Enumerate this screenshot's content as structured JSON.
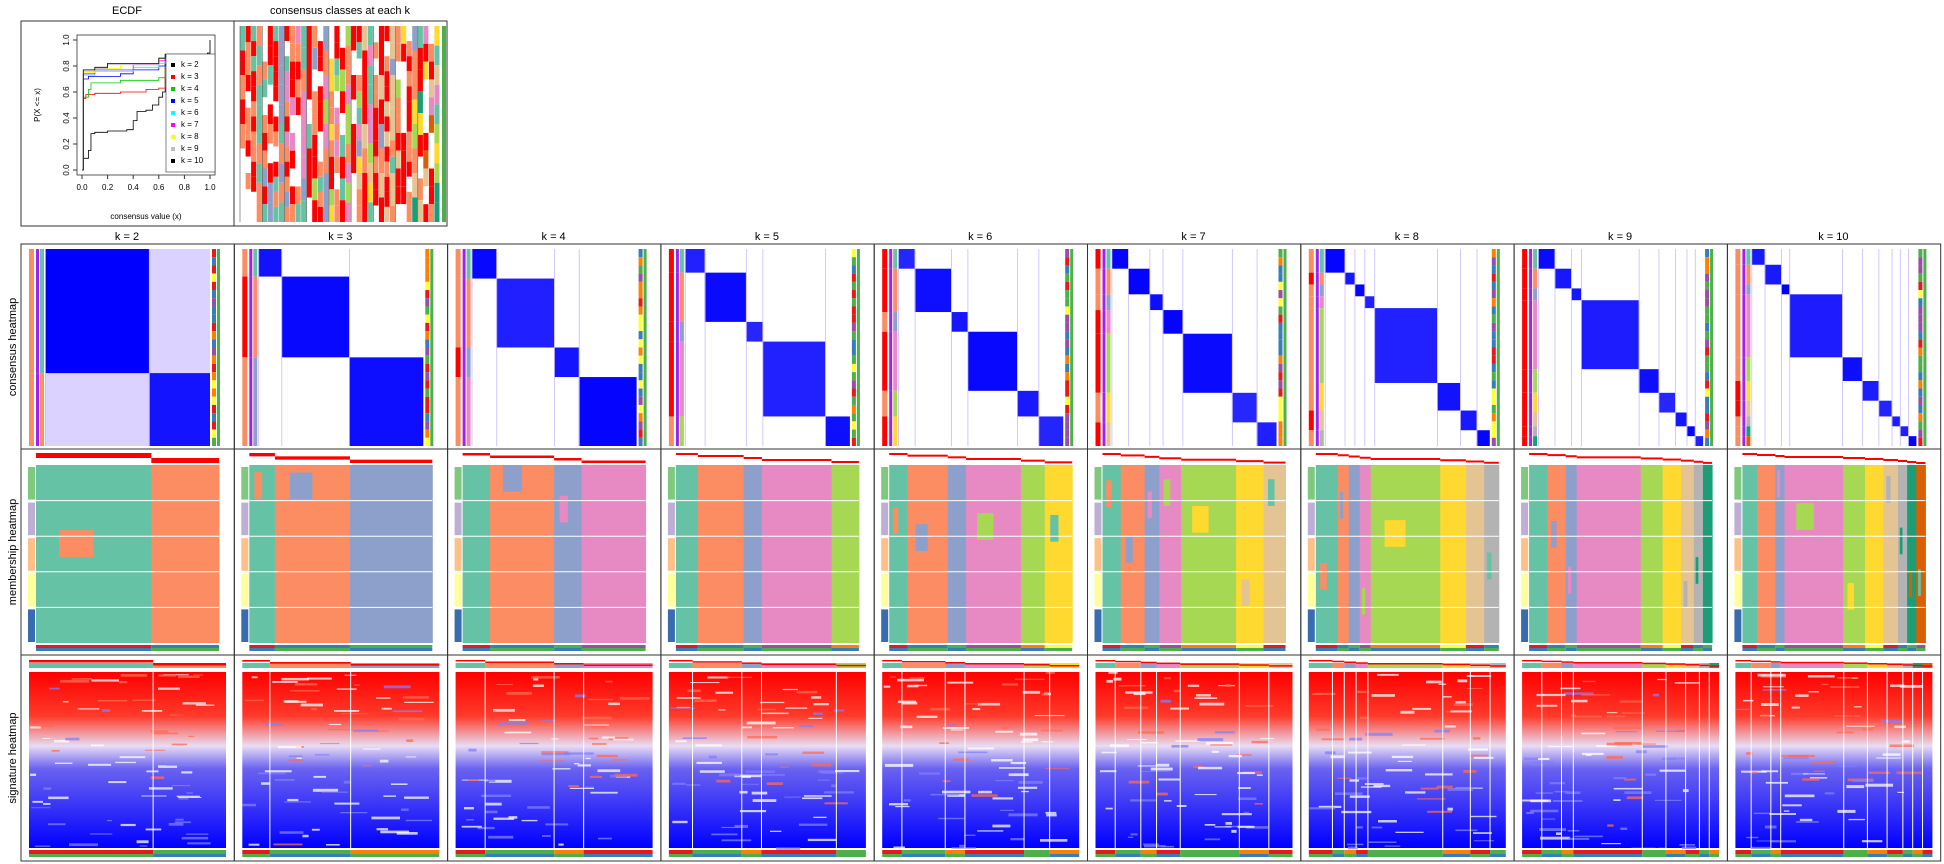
{
  "ecdf_title": "ECDF",
  "classes_title": "consensus classes at each k",
  "row_labels": [
    "consensus heatmap",
    "membership heatmap",
    "signature heatmap"
  ],
  "k_labels": [
    "k = 2",
    "k = 3",
    "k = 4",
    "k = 5",
    "k = 6",
    "k = 7",
    "k = 8",
    "k = 9",
    "k = 10"
  ],
  "palette": {
    "classes": [
      "#66C2A5",
      "#FC8D62",
      "#8DA0CB",
      "#E78AC3",
      "#A6D854",
      "#FFD92F",
      "#E5C494",
      "#B3B3B3",
      "#1B9E77",
      "#D95F02"
    ],
    "consensus_high": "#0000FF",
    "signature_high": "#FF0000",
    "signature_low": "#0000FF",
    "silhouette": "#FF0000",
    "annotation": [
      "#E41A1C",
      "#377EB8",
      "#4DAF4A",
      "#984EA3",
      "#FF7F00",
      "#FFFF33"
    ]
  },
  "chart_data": [
    {
      "type": "line",
      "title": "ECDF",
      "xlabel": "consensus value (x)",
      "ylabel": "P(X <= x)",
      "xlim": [
        0,
        1
      ],
      "ylim": [
        0,
        1
      ],
      "x_ticks": [
        "0.0",
        "0.2",
        "0.4",
        "0.6",
        "0.8",
        "1.0"
      ],
      "y_ticks": [
        "0.0",
        "0.2",
        "0.4",
        "0.6",
        "0.8",
        "1.0"
      ],
      "legend_position": "right",
      "series": [
        {
          "name": "k = 2",
          "color": "#000000",
          "points": [
            [
              0,
              0
            ],
            [
              0.01,
              0.09
            ],
            [
              0.05,
              0.15
            ],
            [
              0.07,
              0.28
            ],
            [
              0.1,
              0.29
            ],
            [
              0.2,
              0.3
            ],
            [
              0.35,
              0.31
            ],
            [
              0.4,
              0.38
            ],
            [
              0.43,
              0.45
            ],
            [
              0.5,
              0.46
            ],
            [
              0.55,
              0.5
            ],
            [
              0.6,
              0.56
            ],
            [
              0.63,
              0.6
            ],
            [
              0.65,
              0.85
            ],
            [
              0.9,
              0.88
            ],
            [
              0.98,
              0.9
            ],
            [
              1,
              1
            ]
          ]
        },
        {
          "name": "k = 3",
          "color": "#FF0000",
          "points": [
            [
              0,
              0
            ],
            [
              0.01,
              0.55
            ],
            [
              0.03,
              0.58
            ],
            [
              0.1,
              0.59
            ],
            [
              0.3,
              0.6
            ],
            [
              0.5,
              0.62
            ],
            [
              0.6,
              0.63
            ],
            [
              0.65,
              0.88
            ],
            [
              1,
              1
            ]
          ]
        },
        {
          "name": "k = 4",
          "color": "#00CD00",
          "points": [
            [
              0,
              0
            ],
            [
              0.01,
              0.56
            ],
            [
              0.05,
              0.62
            ],
            [
              0.07,
              0.67
            ],
            [
              0.3,
              0.69
            ],
            [
              0.6,
              0.71
            ],
            [
              0.65,
              0.88
            ],
            [
              1,
              1
            ]
          ]
        },
        {
          "name": "k = 5",
          "color": "#0000FF",
          "points": [
            [
              0,
              0
            ],
            [
              0.01,
              0.7
            ],
            [
              0.05,
              0.72
            ],
            [
              0.3,
              0.74
            ],
            [
              0.4,
              0.77
            ],
            [
              0.6,
              0.8
            ],
            [
              0.65,
              0.88
            ],
            [
              1,
              1
            ]
          ]
        },
        {
          "name": "k = 6",
          "color": "#00FFFF",
          "points": [
            [
              0,
              0
            ],
            [
              0.01,
              0.73
            ],
            [
              0.1,
              0.76
            ],
            [
              0.4,
              0.79
            ],
            [
              0.6,
              0.82
            ],
            [
              0.65,
              0.88
            ],
            [
              1,
              1
            ]
          ]
        },
        {
          "name": "k = 7",
          "color": "#FF00FF",
          "points": [
            [
              0,
              0
            ],
            [
              0.01,
              0.74
            ],
            [
              0.1,
              0.77
            ],
            [
              0.4,
              0.81
            ],
            [
              0.6,
              0.84
            ],
            [
              0.65,
              0.88
            ],
            [
              1,
              1
            ]
          ]
        },
        {
          "name": "k = 8",
          "color": "#FFFF00",
          "points": [
            [
              0,
              0
            ],
            [
              0.01,
              0.75
            ],
            [
              0.1,
              0.78
            ],
            [
              0.3,
              0.82
            ],
            [
              0.6,
              0.86
            ],
            [
              0.65,
              0.88
            ],
            [
              1,
              1
            ]
          ]
        },
        {
          "name": "k = 9",
          "color": "#BEBEBE",
          "points": [
            [
              0,
              0
            ],
            [
              0.01,
              0.76
            ],
            [
              0.1,
              0.78
            ],
            [
              0.2,
              0.81
            ],
            [
              0.6,
              0.86
            ],
            [
              0.65,
              0.89
            ],
            [
              1,
              1
            ]
          ]
        },
        {
          "name": "k = 10",
          "color": "#000000",
          "points": [
            [
              0,
              0
            ],
            [
              0.01,
              0.77
            ],
            [
              0.1,
              0.79
            ],
            [
              0.2,
              0.82
            ],
            [
              0.6,
              0.86
            ],
            [
              0.65,
              0.89
            ],
            [
              1,
              1
            ]
          ]
        }
      ]
    },
    {
      "type": "heatmap",
      "title": "consensus classes at each k",
      "class_proportions": {
        "2": [
          0.63,
          0.37
        ],
        "3": [
          0.14,
          0.41,
          0.45
        ],
        "4": [
          0.15,
          0.35,
          0.15,
          0.35
        ],
        "5": [
          0.12,
          0.25,
          0.1,
          0.38,
          0.15
        ],
        "6": [
          0.1,
          0.22,
          0.1,
          0.3,
          0.13,
          0.15
        ],
        "7": [
          0.1,
          0.13,
          0.08,
          0.12,
          0.3,
          0.15,
          0.12
        ],
        "8": [
          0.12,
          0.06,
          0.06,
          0.06,
          0.38,
          0.14,
          0.1,
          0.08
        ],
        "9": [
          0.1,
          0.1,
          0.06,
          0.35,
          0.12,
          0.1,
          0.07,
          0.05,
          0.05
        ],
        "10": [
          0.08,
          0.1,
          0.05,
          0.32,
          0.12,
          0.1,
          0.08,
          0.05,
          0.05,
          0.05
        ]
      }
    }
  ]
}
